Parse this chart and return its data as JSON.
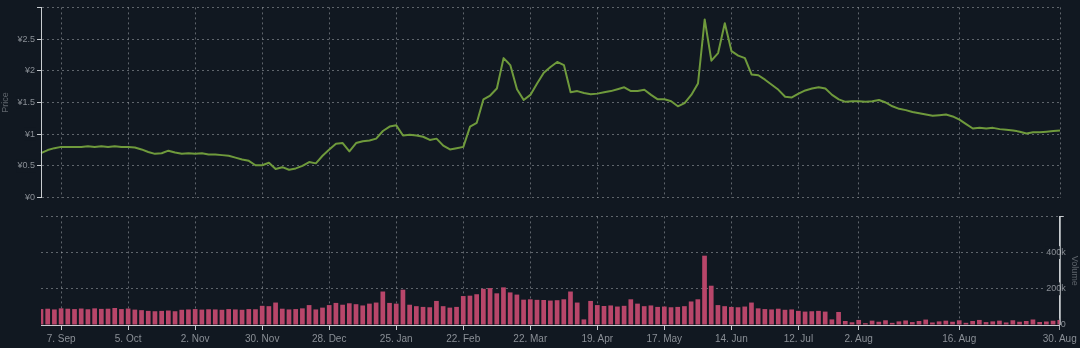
{
  "chart_data": [
    {
      "type": "line",
      "ylabel": "Price",
      "color": "#6f9a3c",
      "marker": "none",
      "grid": true,
      "tick_labels": "y",
      "ylim": [
        0,
        3
      ],
      "yticks": [
        {
          "value": 0,
          "label": "¥0"
        },
        {
          "value": 0.5,
          "label": "¥0.5"
        },
        {
          "value": 1,
          "label": "¥1"
        },
        {
          "value": 1.5,
          "label": "¥1.5"
        },
        {
          "value": 2,
          "label": "¥2"
        },
        {
          "value": 2.5,
          "label": "¥2.5"
        },
        {
          "value": 3,
          "label": null
        }
      ],
      "categories": [
        null,
        null,
        null,
        null,
        null,
        null,
        null,
        null,
        null,
        null,
        null,
        null,
        null,
        null,
        null,
        null,
        null,
        null,
        null,
        null,
        null,
        null,
        null,
        null,
        null,
        null,
        null,
        null,
        null,
        null,
        null,
        null,
        null,
        null,
        null,
        null,
        null,
        null,
        null,
        null,
        null,
        null,
        null,
        null,
        null,
        null,
        null,
        null,
        null,
        null,
        null,
        null,
        null,
        null,
        null,
        null,
        null,
        null,
        null,
        null,
        null,
        null,
        null,
        null,
        null,
        null,
        null,
        null,
        null,
        null,
        null,
        null,
        null,
        null,
        null,
        null,
        null,
        null,
        null,
        null,
        null,
        null,
        null,
        null,
        null,
        null,
        null,
        null,
        null,
        null,
        null,
        null,
        null,
        null,
        null,
        null,
        null,
        null,
        null,
        null,
        null,
        null,
        null,
        null,
        null,
        null,
        null,
        null,
        null,
        null,
        null,
        null,
        null,
        null,
        null,
        null,
        null,
        null,
        null,
        null,
        null,
        null,
        null,
        null,
        null,
        null,
        null,
        null,
        null,
        null,
        null,
        null,
        null,
        null,
        null,
        null,
        null,
        null,
        null,
        null,
        null,
        null,
        null,
        null,
        null,
        null,
        null,
        null,
        null,
        null,
        null,
        null,
        null
      ],
      "values": [
        0.7,
        0.75,
        0.78,
        0.8,
        0.8,
        0.8,
        0.8,
        0.81,
        0.8,
        0.81,
        0.8,
        0.81,
        0.8,
        0.8,
        0.79,
        0.76,
        0.72,
        0.69,
        0.7,
        0.74,
        0.71,
        0.69,
        0.7,
        0.69,
        0.7,
        0.68,
        0.68,
        0.67,
        0.66,
        0.63,
        0.6,
        0.58,
        0.51,
        0.51,
        0.55,
        0.45,
        0.48,
        0.44,
        0.46,
        0.5,
        0.56,
        0.54,
        0.66,
        0.76,
        0.85,
        0.86,
        0.73,
        0.86,
        0.89,
        0.9,
        0.93,
        1.05,
        1.12,
        1.14,
        0.98,
        0.99,
        0.98,
        0.96,
        0.91,
        0.93,
        0.82,
        0.76,
        0.78,
        0.8,
        1.12,
        1.18,
        1.55,
        1.61,
        1.72,
        2.2,
        2.09,
        1.71,
        1.54,
        1.62,
        1.8,
        1.97,
        2.06,
        2.14,
        2.09,
        1.66,
        1.68,
        1.65,
        1.63,
        1.64,
        1.66,
        1.68,
        1.71,
        1.74,
        1.68,
        1.68,
        1.7,
        1.62,
        1.55,
        1.55,
        1.52,
        1.44,
        1.49,
        1.62,
        1.8,
        2.81,
        2.16,
        2.28,
        2.75,
        2.31,
        2.24,
        2.2,
        1.94,
        1.93,
        1.86,
        1.78,
        1.7,
        1.59,
        1.58,
        1.64,
        1.69,
        1.72,
        1.74,
        1.72,
        1.62,
        1.55,
        1.51,
        1.52,
        1.52,
        1.51,
        1.52,
        1.54,
        1.5,
        1.44,
        1.4,
        1.38,
        1.35,
        1.33,
        1.31,
        1.29,
        1.3,
        1.31,
        1.28,
        1.23,
        1.16,
        1.09,
        1.1,
        1.09,
        1.1,
        1.08,
        1.07,
        1.06,
        1.04,
        1.01,
        1.03,
        1.03,
        1.04,
        1.05,
        1.06
      ]
    },
    {
      "type": "bar",
      "ylabel": "Volume",
      "color": "#b8466a",
      "grid": true,
      "ylim": [
        0,
        600000
      ],
      "yticks": [
        0,
        {
          "value": 200000,
          "label": "200k"
        },
        {
          "value": 400000,
          "label": "400k"
        },
        {
          "value": 600000,
          "label": null
        }
      ],
      "categories": [
        null,
        null,
        null,
        "7. Sep",
        null,
        null,
        null,
        null,
        null,
        null,
        null,
        null,
        null,
        "5. Oct",
        null,
        null,
        null,
        null,
        null,
        null,
        null,
        null,
        null,
        "2. Nov",
        null,
        null,
        null,
        null,
        null,
        null,
        null,
        null,
        null,
        "30. Nov",
        null,
        null,
        null,
        null,
        null,
        null,
        null,
        null,
        null,
        "28. Dec",
        null,
        null,
        null,
        null,
        null,
        null,
        null,
        null,
        null,
        "25. Jan",
        null,
        null,
        null,
        null,
        null,
        null,
        null,
        null,
        null,
        "22. Feb",
        null,
        null,
        null,
        null,
        null,
        null,
        null,
        null,
        null,
        "22. Mar",
        null,
        null,
        null,
        null,
        null,
        null,
        null,
        null,
        null,
        "19. Apr",
        null,
        null,
        null,
        null,
        null,
        null,
        null,
        null,
        null,
        "17. May",
        null,
        null,
        null,
        null,
        null,
        null,
        null,
        null,
        null,
        "14. Jun",
        null,
        null,
        null,
        null,
        null,
        null,
        null,
        null,
        null,
        "12. Jul",
        null,
        null,
        null,
        null,
        null,
        null,
        null,
        null,
        "2. Aug",
        null,
        null,
        null,
        null,
        null,
        null,
        null,
        null,
        null,
        null,
        null,
        null,
        null,
        null,
        "16. Aug",
        null,
        null,
        null,
        null,
        null,
        null,
        null,
        null,
        null,
        null,
        null,
        null,
        null,
        null,
        "30. Aug"
      ],
      "values": [
        88000,
        90000,
        86000,
        92000,
        90000,
        88000,
        91000,
        87000,
        92000,
        89000,
        90000,
        94000,
        88000,
        91000,
        85000,
        82000,
        78000,
        76000,
        78000,
        80000,
        76000,
        84000,
        86000,
        88000,
        85000,
        87000,
        86000,
        84000,
        88000,
        86000,
        84000,
        88000,
        87000,
        106000,
        104000,
        124000,
        90000,
        86000,
        88000,
        92000,
        110000,
        86000,
        96000,
        110000,
        122000,
        112000,
        120000,
        115000,
        108000,
        118000,
        124000,
        185000,
        122000,
        118000,
        195000,
        112000,
        104000,
        100000,
        98000,
        133000,
        104000,
        96000,
        100000,
        160000,
        162000,
        170000,
        200000,
        204000,
        175000,
        208000,
        180000,
        168000,
        140000,
        142000,
        139000,
        138000,
        135000,
        137000,
        142000,
        185000,
        124000,
        31000,
        133000,
        110000,
        105000,
        108000,
        102000,
        106000,
        142000,
        118000,
        104000,
        108000,
        100000,
        102000,
        98000,
        100000,
        104000,
        130000,
        142000,
        383000,
        217000,
        110000,
        104000,
        100000,
        98000,
        102000,
        124000,
        92000,
        88000,
        86000,
        90000,
        84000,
        86000,
        78000,
        74000,
        76000,
        78000,
        74000,
        31000,
        72000,
        22000,
        15000,
        28000,
        10000,
        24000,
        18000,
        26000,
        12000,
        20000,
        25000,
        16000,
        22000,
        30000,
        14000,
        20000,
        24000,
        18000,
        26000,
        12000,
        22000,
        28000,
        16000,
        20000,
        24000,
        14000,
        26000,
        18000,
        22000,
        30000,
        16000,
        20000,
        24000,
        28000
      ]
    }
  ]
}
